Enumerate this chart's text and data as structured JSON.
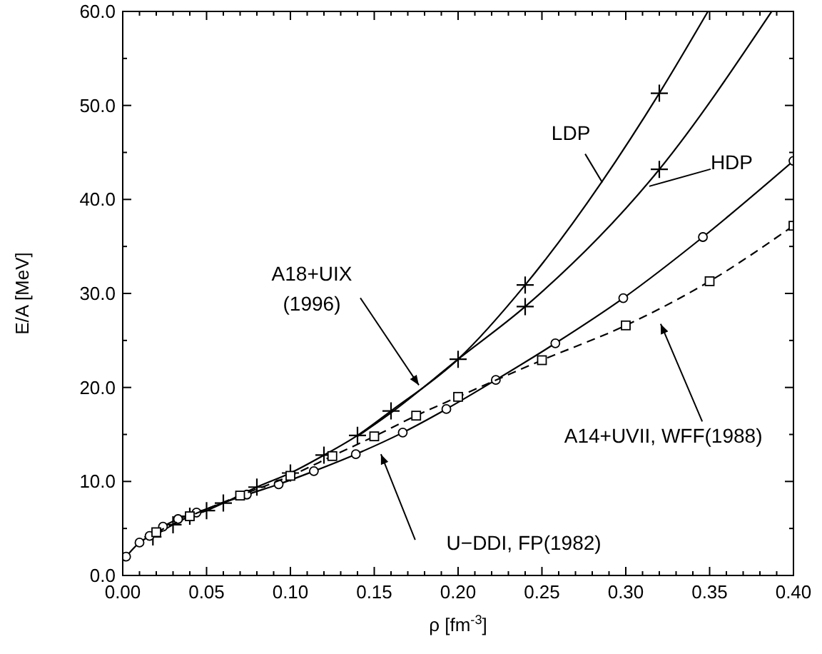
{
  "chart_data": {
    "type": "line",
    "xlabel": "ρ [fm$^{-3}$]",
    "ylabel": "E/A [MeV]",
    "xlim": [
      0,
      0.4
    ],
    "ylim": [
      0,
      60
    ],
    "xticks": [
      {
        "value": 0,
        "label": "0.00"
      },
      {
        "value": 0.01,
        "label": null
      },
      {
        "value": 0.02,
        "label": null
      },
      {
        "value": 0.03,
        "label": null
      },
      {
        "value": 0.04,
        "label": null
      },
      {
        "value": 0.05,
        "label": "0.05"
      },
      {
        "value": 0.06,
        "label": null
      },
      {
        "value": 0.07,
        "label": null
      },
      {
        "value": 0.08,
        "label": null
      },
      {
        "value": 0.09,
        "label": null
      },
      {
        "value": 0.1,
        "label": "0.10"
      },
      {
        "value": 0.11,
        "label": null
      },
      {
        "value": 0.12,
        "label": null
      },
      {
        "value": 0.13,
        "label": null
      },
      {
        "value": 0.14,
        "label": null
      },
      {
        "value": 0.15,
        "label": "0.15"
      },
      {
        "value": 0.16,
        "label": null
      },
      {
        "value": 0.17,
        "label": null
      },
      {
        "value": 0.18,
        "label": null
      },
      {
        "value": 0.19,
        "label": null
      },
      {
        "value": 0.2,
        "label": "0.20"
      },
      {
        "value": 0.21,
        "label": null
      },
      {
        "value": 0.22,
        "label": null
      },
      {
        "value": 0.23,
        "label": null
      },
      {
        "value": 0.24,
        "label": null
      },
      {
        "value": 0.25,
        "label": "0.25"
      },
      {
        "value": 0.26,
        "label": null
      },
      {
        "value": 0.27,
        "label": null
      },
      {
        "value": 0.28,
        "label": null
      },
      {
        "value": 0.29,
        "label": null
      },
      {
        "value": 0.3,
        "label": "0.30"
      },
      {
        "value": 0.31,
        "label": null
      },
      {
        "value": 0.32,
        "label": null
      },
      {
        "value": 0.33,
        "label": null
      },
      {
        "value": 0.34,
        "label": null
      },
      {
        "value": 0.35,
        "label": "0.35"
      },
      {
        "value": 0.36,
        "label": null
      },
      {
        "value": 0.37,
        "label": null
      },
      {
        "value": 0.38,
        "label": null
      },
      {
        "value": 0.39,
        "label": null
      },
      {
        "value": 0.4,
        "label": "0.40"
      }
    ],
    "yticks": [
      {
        "value": 0,
        "label": "0.0"
      },
      {
        "value": 5,
        "label": null
      },
      {
        "value": 10,
        "label": "10.0"
      },
      {
        "value": 15,
        "label": null
      },
      {
        "value": 20,
        "label": "20.0"
      },
      {
        "value": 25,
        "label": null
      },
      {
        "value": 30,
        "label": "30.0"
      },
      {
        "value": 35,
        "label": null
      },
      {
        "value": 40,
        "label": "40.0"
      },
      {
        "value": 45,
        "label": null
      },
      {
        "value": 50,
        "label": "50.0"
      },
      {
        "value": 55,
        "label": null
      },
      {
        "value": 60,
        "label": "60.0"
      }
    ],
    "series": [
      {
        "color": "#000000",
        "marker": "none",
        "line_style": "solid",
        "x": [
          0.018,
          0.03,
          0.04,
          0.05,
          0.06,
          0.08,
          0.1,
          0.12,
          0.14,
          0.16,
          0.2,
          0.24,
          0.32,
          0.349
        ],
        "values": [
          4.1,
          5.4,
          6.3,
          6.9,
          7.7,
          9.4,
          10.9,
          12.8,
          14.9,
          17.5,
          23.0,
          30.9,
          51.3,
          60
        ]
      },
      {
        "color": "#000000",
        "marker": "none",
        "line_style": "solid",
        "x": [
          0.14,
          0.16,
          0.2,
          0.24,
          0.32,
          0.387
        ],
        "values": [
          14.8,
          17.3,
          23.0,
          28.6,
          43.2,
          60
        ]
      },
      {
        "type": "scatter",
        "color": "#000000",
        "marker": "cross",
        "x": [
          0.018,
          0.03,
          0.04,
          0.05,
          0.06,
          0.08,
          0.1,
          0.12,
          0.14,
          0.16,
          0.2,
          0.24,
          0.24,
          0.32,
          0.32
        ],
        "values": [
          4.1,
          5.4,
          6.3,
          6.9,
          7.7,
          9.4,
          10.9,
          12.8,
          14.9,
          17.5,
          23.0,
          30.9,
          28.6,
          51.3,
          43.2
        ]
      },
      {
        "type": "line",
        "color": "#000000",
        "marker": "circle",
        "line_style": "solid",
        "x": [
          0.002,
          0.01,
          0.016,
          0.024,
          0.033,
          0.044,
          0.074,
          0.093,
          0.114,
          0.139,
          0.167,
          0.193,
          0.2225,
          0.258,
          0.2985,
          0.346,
          0.4
        ],
        "values": [
          2.0,
          3.5,
          4.2,
          5.2,
          6.0,
          6.7,
          8.6,
          9.7,
          11.1,
          12.9,
          15.2,
          17.7,
          20.8,
          24.7,
          29.5,
          36.0,
          44.1
        ]
      },
      {
        "type": "line",
        "color": "#000000",
        "marker": "square",
        "line_style": "dashed",
        "x": [
          0.02,
          0.04,
          0.07,
          0.1,
          0.125,
          0.15,
          0.175,
          0.2,
          0.25,
          0.3,
          0.35,
          0.4
        ],
        "values": [
          4.6,
          6.3,
          8.5,
          10.6,
          12.7,
          14.8,
          17.0,
          19.0,
          22.9,
          26.6,
          31.3,
          37.2
        ]
      }
    ],
    "annotations": [
      {
        "text": "LDP",
        "x": 0.286,
        "y": 41.8
      },
      {
        "text": "HDP",
        "x": 0.314,
        "y": 41.4
      },
      {
        "text": "A18+UIX\n(1996)",
        "x": 0.1766,
        "y": 20.25
      },
      "A14+UVII, WFF(1988)",
      "U−DDI, FP(1982)"
    ]
  }
}
